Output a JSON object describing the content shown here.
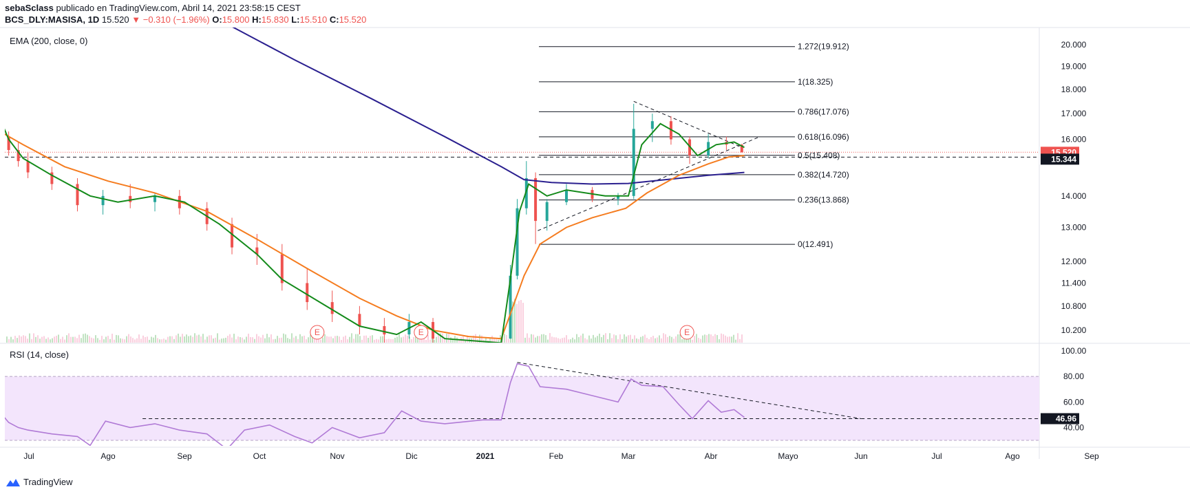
{
  "header": {
    "author": "sebaSclass",
    "published": "publicado en TradingView.com, Abril 14, 2021 23:58:15 CEST",
    "symbol": "BCS_DLY:MASISA, 1D",
    "last": "15.520",
    "change": "−0.310 (−1.96%)",
    "o_label": "O:",
    "o": "15.800",
    "h_label": "H:",
    "h": "15.830",
    "l_label": "L:",
    "l": "15.510",
    "c_label": "C:",
    "c": "15.520"
  },
  "panes": {
    "main_title": "EMA (200, close, 0)",
    "rsi_title": "RSI (14, close)"
  },
  "brand": {
    "name": "TradingView",
    "icon": "tradingview-logo-icon"
  },
  "colors": {
    "candle_up": "#26a69a",
    "candle_down": "#ef5350",
    "ema200": "#2a1f8f",
    "ema_orange": "#f57c1f",
    "ema_green": "#138a1a",
    "rsi_line": "#b07ad6",
    "rsi_band": "#f3e5fc",
    "price_tag": "#ef5350",
    "level_tag": "#131722"
  },
  "chart_data": [
    {
      "type": "candlestick",
      "title": "EMA (200, close, 0)",
      "scale": "log",
      "ylim": [
        10.0,
        20.5
      ],
      "y_ticks": [
        "20.000",
        "19.000",
        "18.000",
        "17.000",
        "16.000",
        "14.000",
        "13.000",
        "12.000",
        "11.400",
        "10.800",
        "10.200"
      ],
      "x_ticks": [
        "Jul",
        "Ago",
        "Sep",
        "Oct",
        "Nov",
        "Dic",
        "2021",
        "Feb",
        "Mar",
        "Abr",
        "Mayo",
        "Jun",
        "Jul",
        "Ago",
        "Sep"
      ],
      "price_labels": {
        "last": "15.520",
        "level": "15.344"
      },
      "fib_levels": [
        {
          "label": "1.272(19.912)",
          "value": 19.912
        },
        {
          "label": "1(18.325)",
          "value": 18.325
        },
        {
          "label": "0.786(17.076)",
          "value": 17.076
        },
        {
          "label": "0.618(16.096)",
          "value": 16.096
        },
        {
          "label": "0.5(15.408)",
          "value": 15.408
        },
        {
          "label": "0.382(14.720)",
          "value": 14.72
        },
        {
          "label": "0.236(13.868)",
          "value": 13.868
        },
        {
          "label": "0(12.491)",
          "value": 12.491
        }
      ],
      "earnings_markers": [
        {
          "date": "2020-10-24",
          "label": "E"
        },
        {
          "date": "2020-12-05",
          "label": "E"
        },
        {
          "date": "2021-03-23",
          "label": "E"
        }
      ],
      "ema200": [
        {
          "x": "2020-06-01",
          "y": 28.5
        },
        {
          "x": "2020-08-01",
          "y": 24.0
        },
        {
          "x": "2020-09-15",
          "y": 21.2
        },
        {
          "x": "2020-10-15",
          "y": 19.3
        },
        {
          "x": "2020-11-15",
          "y": 17.6
        },
        {
          "x": "2020-12-15",
          "y": 16.1
        },
        {
          "x": "2021-01-08",
          "y": 15.0
        },
        {
          "x": "2021-01-18",
          "y": 14.55
        },
        {
          "x": "2021-01-30",
          "y": 14.45
        },
        {
          "x": "2021-02-15",
          "y": 14.4
        },
        {
          "x": "2021-03-01",
          "y": 14.42
        },
        {
          "x": "2021-03-15",
          "y": 14.55
        },
        {
          "x": "2021-03-31",
          "y": 14.7
        },
        {
          "x": "2021-04-14",
          "y": 14.8
        }
      ],
      "ema_orange": [
        {
          "x": "2020-06-01",
          "y": 16.3
        },
        {
          "x": "2020-06-25",
          "y": 15.8
        },
        {
          "x": "2020-07-15",
          "y": 15.0
        },
        {
          "x": "2020-08-01",
          "y": 14.5
        },
        {
          "x": "2020-08-20",
          "y": 14.1
        },
        {
          "x": "2020-09-10",
          "y": 13.5
        },
        {
          "x": "2020-10-01",
          "y": 12.6
        },
        {
          "x": "2020-10-20",
          "y": 11.8
        },
        {
          "x": "2020-11-10",
          "y": 11.0
        },
        {
          "x": "2020-11-25",
          "y": 10.55
        },
        {
          "x": "2020-12-10",
          "y": 10.2
        },
        {
          "x": "2020-12-25",
          "y": 10.05
        },
        {
          "x": "2021-01-08",
          "y": 10.0
        },
        {
          "x": "2021-01-12",
          "y": 10.6
        },
        {
          "x": "2021-01-18",
          "y": 11.6
        },
        {
          "x": "2021-01-25",
          "y": 12.5
        },
        {
          "x": "2021-02-05",
          "y": 13.0
        },
        {
          "x": "2021-02-15",
          "y": 13.3
        },
        {
          "x": "2021-02-28",
          "y": 13.6
        },
        {
          "x": "2021-03-08",
          "y": 14.1
        },
        {
          "x": "2021-03-20",
          "y": 14.7
        },
        {
          "x": "2021-03-31",
          "y": 15.1
        },
        {
          "x": "2021-04-08",
          "y": 15.35
        },
        {
          "x": "2021-04-14",
          "y": 15.4
        }
      ],
      "ema_green": [
        {
          "x": "2020-06-01",
          "y": 16.8
        },
        {
          "x": "2020-06-10",
          "y": 16.0
        },
        {
          "x": "2020-06-25",
          "y": 15.3
        },
        {
          "x": "2020-07-10",
          "y": 14.7
        },
        {
          "x": "2020-07-25",
          "y": 14.0
        },
        {
          "x": "2020-08-05",
          "y": 13.8
        },
        {
          "x": "2020-08-20",
          "y": 14.0
        },
        {
          "x": "2020-09-01",
          "y": 13.8
        },
        {
          "x": "2020-09-15",
          "y": 13.1
        },
        {
          "x": "2020-09-30",
          "y": 12.2
        },
        {
          "x": "2020-10-10",
          "y": 11.5
        },
        {
          "x": "2020-10-25",
          "y": 10.9
        },
        {
          "x": "2020-11-10",
          "y": 10.3
        },
        {
          "x": "2020-11-25",
          "y": 10.1
        },
        {
          "x": "2020-12-05",
          "y": 10.4
        },
        {
          "x": "2020-12-15",
          "y": 10.0
        },
        {
          "x": "2021-01-08",
          "y": 9.9
        },
        {
          "x": "2021-01-12",
          "y": 11.5
        },
        {
          "x": "2021-01-16",
          "y": 13.5
        },
        {
          "x": "2021-01-20",
          "y": 14.4
        },
        {
          "x": "2021-01-28",
          "y": 14.0
        },
        {
          "x": "2021-02-05",
          "y": 14.2
        },
        {
          "x": "2021-02-20",
          "y": 14.0
        },
        {
          "x": "2021-03-01",
          "y": 14.0
        },
        {
          "x": "2021-03-06",
          "y": 15.8
        },
        {
          "x": "2021-03-13",
          "y": 16.6
        },
        {
          "x": "2021-03-20",
          "y": 16.2
        },
        {
          "x": "2021-03-27",
          "y": 15.4
        },
        {
          "x": "2021-04-03",
          "y": 15.8
        },
        {
          "x": "2021-04-10",
          "y": 15.9
        },
        {
          "x": "2021-04-14",
          "y": 15.7
        }
      ],
      "candles": [
        {
          "x": "2020-06-01",
          "o": 16.6,
          "h": 16.8,
          "l": 16.0,
          "c": 16.2
        },
        {
          "x": "2020-06-10",
          "o": 16.1,
          "h": 16.3,
          "l": 15.4,
          "c": 15.6
        },
        {
          "x": "2020-06-20",
          "o": 15.6,
          "h": 15.9,
          "l": 15.0,
          "c": 15.2
        },
        {
          "x": "2020-06-30",
          "o": 15.2,
          "h": 15.5,
          "l": 14.6,
          "c": 14.8
        },
        {
          "x": "2020-07-10",
          "o": 14.8,
          "h": 15.0,
          "l": 14.2,
          "c": 14.4
        },
        {
          "x": "2020-07-20",
          "o": 14.4,
          "h": 14.6,
          "l": 13.5,
          "c": 13.7
        },
        {
          "x": "2020-07-30",
          "o": 13.7,
          "h": 14.2,
          "l": 13.4,
          "c": 14.0
        },
        {
          "x": "2020-08-10",
          "o": 14.0,
          "h": 14.4,
          "l": 13.6,
          "c": 13.8
        },
        {
          "x": "2020-08-20",
          "o": 13.8,
          "h": 14.1,
          "l": 13.5,
          "c": 14.0
        },
        {
          "x": "2020-08-30",
          "o": 14.0,
          "h": 14.2,
          "l": 13.4,
          "c": 13.6
        },
        {
          "x": "2020-09-10",
          "o": 13.6,
          "h": 13.8,
          "l": 12.9,
          "c": 13.1
        },
        {
          "x": "2020-09-20",
          "o": 13.1,
          "h": 13.3,
          "l": 12.2,
          "c": 12.4
        },
        {
          "x": "2020-09-30",
          "o": 12.4,
          "h": 12.8,
          "l": 11.9,
          "c": 12.2
        },
        {
          "x": "2020-10-10",
          "o": 12.2,
          "h": 12.5,
          "l": 11.2,
          "c": 11.4
        },
        {
          "x": "2020-10-20",
          "o": 11.4,
          "h": 11.8,
          "l": 10.7,
          "c": 10.9
        },
        {
          "x": "2020-10-30",
          "o": 10.9,
          "h": 11.2,
          "l": 10.4,
          "c": 10.6
        },
        {
          "x": "2020-11-10",
          "o": 10.6,
          "h": 10.8,
          "l": 10.1,
          "c": 10.3
        },
        {
          "x": "2020-11-20",
          "o": 10.3,
          "h": 10.5,
          "l": 9.9,
          "c": 10.1
        },
        {
          "x": "2020-11-30",
          "o": 10.1,
          "h": 10.6,
          "l": 10.0,
          "c": 10.4
        },
        {
          "x": "2020-12-10",
          "o": 10.4,
          "h": 10.5,
          "l": 9.9,
          "c": 10.0
        },
        {
          "x": "2021-01-12",
          "o": 10.0,
          "h": 11.9,
          "l": 10.0,
          "c": 11.6
        },
        {
          "x": "2021-01-15",
          "o": 11.6,
          "h": 13.9,
          "l": 11.5,
          "c": 13.6
        },
        {
          "x": "2021-01-19",
          "o": 13.6,
          "h": 15.2,
          "l": 13.4,
          "c": 14.6
        },
        {
          "x": "2021-01-23",
          "o": 14.6,
          "h": 14.8,
          "l": 12.5,
          "c": 13.2
        },
        {
          "x": "2021-01-28",
          "o": 13.2,
          "h": 13.9,
          "l": 12.9,
          "c": 13.8
        },
        {
          "x": "2021-02-05",
          "o": 13.8,
          "h": 14.4,
          "l": 13.7,
          "c": 14.2
        },
        {
          "x": "2021-02-15",
          "o": 14.2,
          "h": 14.3,
          "l": 13.8,
          "c": 13.9
        },
        {
          "x": "2021-02-25",
          "o": 13.9,
          "h": 14.1,
          "l": 13.7,
          "c": 14.0
        },
        {
          "x": "2021-03-03",
          "o": 14.0,
          "h": 17.4,
          "l": 13.9,
          "c": 16.4
        },
        {
          "x": "2021-03-10",
          "o": 16.4,
          "h": 17.0,
          "l": 15.9,
          "c": 16.7
        },
        {
          "x": "2021-03-17",
          "o": 16.7,
          "h": 16.9,
          "l": 15.8,
          "c": 16.0
        },
        {
          "x": "2021-03-24",
          "o": 16.0,
          "h": 16.1,
          "l": 15.1,
          "c": 15.4
        },
        {
          "x": "2021-03-31",
          "o": 15.4,
          "h": 16.2,
          "l": 15.3,
          "c": 15.9
        },
        {
          "x": "2021-04-07",
          "o": 15.9,
          "h": 16.1,
          "l": 15.6,
          "c": 15.8
        },
        {
          "x": "2021-04-13",
          "o": 15.8,
          "h": 15.83,
          "l": 15.51,
          "c": 15.52
        }
      ]
    },
    {
      "type": "line",
      "title": "RSI (14, close)",
      "ylim": [
        30,
        100
      ],
      "y_ticks": [
        "100.00",
        "80.00",
        "60.00",
        "40.00"
      ],
      "bands": [
        30,
        80
      ],
      "level_label": "46.96",
      "series": [
        {
          "x": "2020-06-01",
          "y": 52
        },
        {
          "x": "2020-06-10",
          "y": 44
        },
        {
          "x": "2020-06-20",
          "y": 40
        },
        {
          "x": "2020-06-30",
          "y": 38
        },
        {
          "x": "2020-07-10",
          "y": 35
        },
        {
          "x": "2020-07-20",
          "y": 33
        },
        {
          "x": "2020-07-25",
          "y": 26
        },
        {
          "x": "2020-07-31",
          "y": 45
        },
        {
          "x": "2020-08-10",
          "y": 40
        },
        {
          "x": "2020-08-20",
          "y": 43
        },
        {
          "x": "2020-08-30",
          "y": 38
        },
        {
          "x": "2020-09-10",
          "y": 35
        },
        {
          "x": "2020-09-18",
          "y": 23
        },
        {
          "x": "2020-09-25",
          "y": 38
        },
        {
          "x": "2020-10-05",
          "y": 42
        },
        {
          "x": "2020-10-15",
          "y": 33
        },
        {
          "x": "2020-10-22",
          "y": 28
        },
        {
          "x": "2020-10-30",
          "y": 40
        },
        {
          "x": "2020-11-10",
          "y": 32
        },
        {
          "x": "2020-11-20",
          "y": 36
        },
        {
          "x": "2020-11-27",
          "y": 53
        },
        {
          "x": "2020-12-05",
          "y": 45
        },
        {
          "x": "2020-12-15",
          "y": 43
        },
        {
          "x": "2020-12-31",
          "y": 46
        },
        {
          "x": "2021-01-08",
          "y": 46
        },
        {
          "x": "2021-01-12",
          "y": 75
        },
        {
          "x": "2021-01-15",
          "y": 90
        },
        {
          "x": "2021-01-20",
          "y": 88
        },
        {
          "x": "2021-01-25",
          "y": 72
        },
        {
          "x": "2021-02-05",
          "y": 70
        },
        {
          "x": "2021-02-15",
          "y": 65
        },
        {
          "x": "2021-02-25",
          "y": 60
        },
        {
          "x": "2021-03-02",
          "y": 78
        },
        {
          "x": "2021-03-06",
          "y": 73
        },
        {
          "x": "2021-03-14",
          "y": 72
        },
        {
          "x": "2021-03-20",
          "y": 58
        },
        {
          "x": "2021-03-25",
          "y": 47
        },
        {
          "x": "2021-03-31",
          "y": 61
        },
        {
          "x": "2021-04-05",
          "y": 52
        },
        {
          "x": "2021-04-10",
          "y": 54
        },
        {
          "x": "2021-04-14",
          "y": 48
        }
      ]
    }
  ]
}
